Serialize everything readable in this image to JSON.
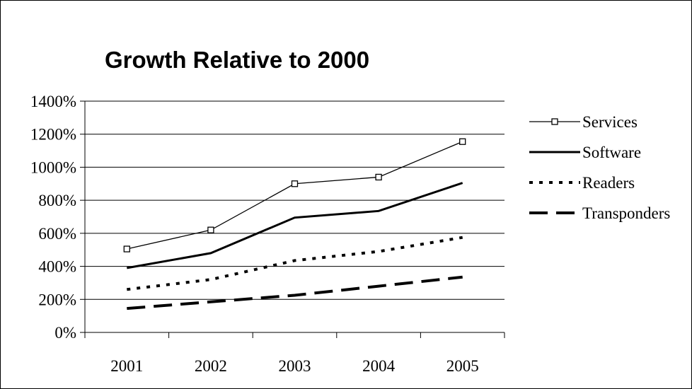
{
  "chart_data": {
    "type": "line",
    "title": "Growth Relative to 2000",
    "xlabel": "",
    "ylabel": "",
    "categories": [
      "2001",
      "2002",
      "2003",
      "2004",
      "2005"
    ],
    "y_ticks": [
      "0%",
      "200%",
      "400%",
      "600%",
      "800%",
      "1000%",
      "1200%",
      "1400%"
    ],
    "ylim": [
      0,
      1400
    ],
    "grid": true,
    "legend_position": "right",
    "series": [
      {
        "name": "Services",
        "values": [
          505,
          620,
          900,
          940,
          1155
        ],
        "style": "thin-square-markers",
        "color": "#000000"
      },
      {
        "name": "Software",
        "values": [
          390,
          480,
          695,
          735,
          905
        ],
        "style": "thick-solid",
        "color": "#000000"
      },
      {
        "name": "Readers",
        "values": [
          260,
          320,
          435,
          490,
          575
        ],
        "style": "dotted",
        "color": "#000000"
      },
      {
        "name": "Transponders",
        "values": [
          145,
          185,
          225,
          280,
          335
        ],
        "style": "long-dash",
        "color": "#000000"
      }
    ]
  }
}
